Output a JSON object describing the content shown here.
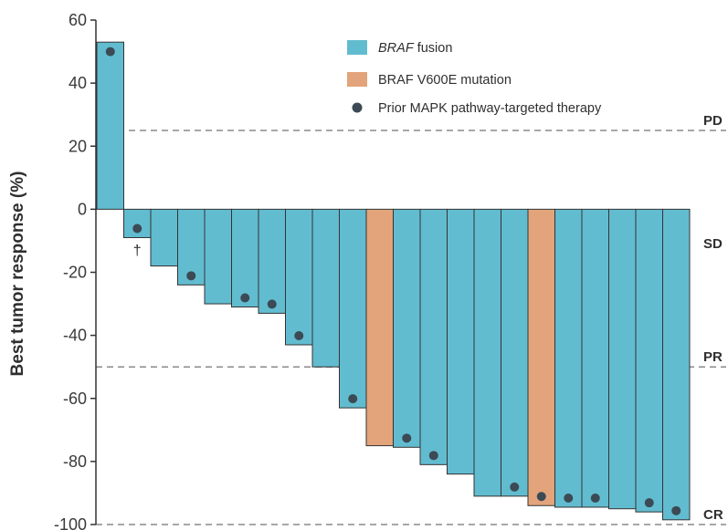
{
  "chart_data": {
    "type": "bar",
    "ylabel": "Best tumor response (%)",
    "xlabel": "",
    "ylim": [
      -100,
      60
    ],
    "yticks": [
      60,
      40,
      20,
      0,
      -20,
      -40,
      -60,
      -80,
      -100
    ],
    "colors": {
      "braf_fusion": "#62bcd0",
      "braf_v600e": "#e3a47b",
      "marker": "#3b4a54",
      "axis": "#333333",
      "threshold": "#8a8a8a"
    },
    "legend": {
      "position": "top-right",
      "items": [
        {
          "key": "braf_fusion",
          "symbol": "square",
          "label_italic": "BRAF",
          "label_rest": " fusion"
        },
        {
          "key": "braf_v600e",
          "symbol": "square",
          "label_italic": "",
          "label_rest": "BRAF V600E mutation"
        },
        {
          "key": "marker",
          "symbol": "dot",
          "label_italic": "",
          "label_rest": "Prior MAPK pathway-targeted therapy"
        }
      ]
    },
    "thresholds": [
      {
        "label": "PD",
        "value": 25,
        "line": true
      },
      {
        "label": "SD",
        "value": -14,
        "line": false
      },
      {
        "label": "PR",
        "value": -50,
        "line": true
      },
      {
        "label": "CR",
        "value": -100,
        "line": true
      }
    ],
    "bars": [
      {
        "value": 53,
        "type": "braf_fusion",
        "prior": true,
        "annotation": ""
      },
      {
        "value": -9,
        "type": "braf_fusion",
        "prior": true,
        "annotation": "†"
      },
      {
        "value": -18,
        "type": "braf_fusion",
        "prior": false,
        "annotation": ""
      },
      {
        "value": -24,
        "type": "braf_fusion",
        "prior": true,
        "annotation": ""
      },
      {
        "value": -30,
        "type": "braf_fusion",
        "prior": false,
        "annotation": ""
      },
      {
        "value": -31,
        "type": "braf_fusion",
        "prior": true,
        "annotation": ""
      },
      {
        "value": -33,
        "type": "braf_fusion",
        "prior": true,
        "annotation": ""
      },
      {
        "value": -43,
        "type": "braf_fusion",
        "prior": true,
        "annotation": ""
      },
      {
        "value": -50,
        "type": "braf_fusion",
        "prior": false,
        "annotation": ""
      },
      {
        "value": -63,
        "type": "braf_fusion",
        "prior": true,
        "annotation": ""
      },
      {
        "value": -75,
        "type": "braf_v600e",
        "prior": false,
        "annotation": ""
      },
      {
        "value": -75.5,
        "type": "braf_fusion",
        "prior": true,
        "annotation": ""
      },
      {
        "value": -81,
        "type": "braf_fusion",
        "prior": true,
        "annotation": ""
      },
      {
        "value": -84,
        "type": "braf_fusion",
        "prior": false,
        "annotation": ""
      },
      {
        "value": -91,
        "type": "braf_fusion",
        "prior": false,
        "annotation": ""
      },
      {
        "value": -91,
        "type": "braf_fusion",
        "prior": true,
        "annotation": ""
      },
      {
        "value": -94,
        "type": "braf_v600e",
        "prior": true,
        "annotation": ""
      },
      {
        "value": -94.5,
        "type": "braf_fusion",
        "prior": true,
        "annotation": ""
      },
      {
        "value": -94.5,
        "type": "braf_fusion",
        "prior": true,
        "annotation": ""
      },
      {
        "value": -95,
        "type": "braf_fusion",
        "prior": false,
        "annotation": ""
      },
      {
        "value": -96,
        "type": "braf_fusion",
        "prior": true,
        "annotation": ""
      },
      {
        "value": -98.5,
        "type": "braf_fusion",
        "prior": true,
        "annotation": ""
      }
    ]
  }
}
